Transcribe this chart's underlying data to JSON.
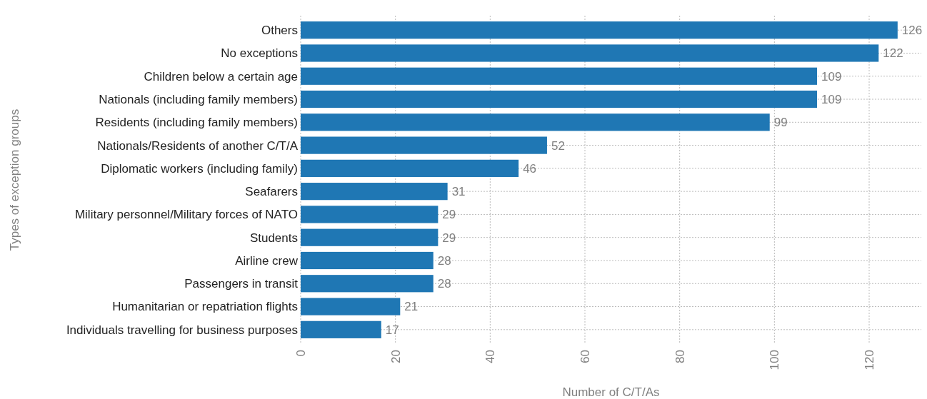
{
  "chart_data": {
    "type": "bar",
    "orientation": "horizontal",
    "xlabel": "Number of C/T/As",
    "ylabel": "Types of exception groups",
    "categories": [
      "Others",
      "No exceptions",
      "Children below a certain age",
      "Nationals (including family members)",
      "Residents (including family members)",
      "Nationals/Residents of another C/T/A",
      "Diplomatic workers (including family)",
      "Seafarers",
      "Military personnel/Military forces of NATO",
      "Students",
      "Airline crew",
      "Passengers in transit",
      "Humanitarian or repatriation flights",
      "Individuals travelling for business purposes"
    ],
    "values": [
      126,
      122,
      109,
      109,
      99,
      52,
      46,
      31,
      29,
      29,
      28,
      28,
      21,
      17
    ],
    "color": "#1f77b4",
    "xlim": [
      0,
      131
    ],
    "xticks": [
      0,
      20,
      40,
      60,
      80,
      100,
      120
    ],
    "grid": true,
    "data_labels": true
  }
}
